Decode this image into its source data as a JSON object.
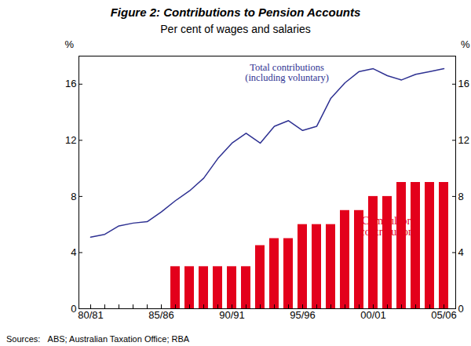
{
  "chart_data": {
    "type": "bar",
    "title": "Figure 2: Contributions to Pension Accounts",
    "subtitle": "Per cent of wages and salaries",
    "y_label": "%",
    "sources": "Sources:   ABS; Australian Taxation Office; RBA",
    "categories": [
      "80/81",
      null,
      null,
      null,
      null,
      "85/86",
      null,
      null,
      null,
      null,
      "90/91",
      null,
      null,
      null,
      null,
      "95/96",
      null,
      null,
      null,
      null,
      "00/01",
      null,
      null,
      null,
      null,
      "05/06"
    ],
    "series": [
      {
        "name": "Compulsory\ncontributions",
        "type": "bar",
        "color": "#e3001b",
        "values": [
          0,
          0,
          0,
          0,
          0,
          0,
          3,
          3,
          3,
          3,
          3,
          3,
          4.5,
          5,
          5,
          6,
          6,
          6,
          7,
          7,
          8,
          8,
          9,
          9,
          9,
          9
        ]
      },
      {
        "name": "Total contributions\n(including voluntary)",
        "type": "line",
        "color": "#2e3192",
        "values": [
          5.1,
          5.3,
          5.9,
          6.1,
          6.2,
          6.9,
          7.7,
          8.4,
          9.3,
          10.7,
          11.8,
          12.5,
          11.8,
          13.0,
          13.4,
          12.7,
          13.0,
          15.0,
          16.1,
          16.9,
          17.1,
          16.6,
          16.3,
          16.7,
          16.9,
          17.1
        ]
      }
    ],
    "ylim": [
      0,
      18
    ],
    "yticks": [
      0,
      4,
      8,
      12,
      16
    ],
    "grid": false
  }
}
